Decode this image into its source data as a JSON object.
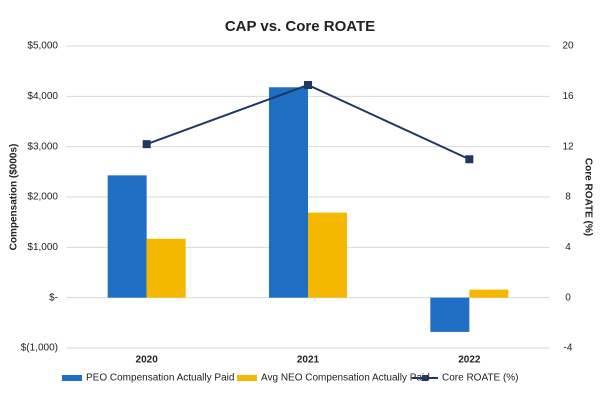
{
  "chart_data": {
    "type": "bar-line",
    "title": "CAP vs. Core ROATE",
    "y_label": "Compensation ($000s)",
    "y2_label": "Core ROATE (%)",
    "categories": [
      "2020",
      "2021",
      "2022"
    ],
    "series": [
      {
        "name": "PEO Compensation Actually Paid",
        "type": "bar",
        "color": "#1f6fc4",
        "values": [
          2430,
          4180,
          -680
        ]
      },
      {
        "name": "Avg NEO Compensation Actually Paid",
        "type": "bar",
        "color": "#f5b800",
        "values": [
          1170,
          1690,
          160
        ]
      },
      {
        "name": "Core ROATE (%)",
        "type": "line",
        "axis": "y2",
        "color": "#1f3864",
        "values": [
          12.2,
          16.9,
          11.0
        ]
      }
    ],
    "ylim": [
      -1000,
      5000
    ],
    "yticks": [
      {
        "value": -1000,
        "label": "$(1,000)"
      },
      {
        "value": 0,
        "label": "$-"
      },
      {
        "value": 1000,
        "label": "$1,000"
      },
      {
        "value": 2000,
        "label": "$2,000"
      },
      {
        "value": 3000,
        "label": "$3,000"
      },
      {
        "value": 4000,
        "label": "$4,000"
      },
      {
        "value": 5000,
        "label": "$5,000"
      }
    ],
    "y2lim": [
      -4,
      20
    ],
    "y2ticks": [
      -4,
      0,
      4,
      8,
      12,
      16,
      20
    ],
    "grid": true,
    "legend": "bottom"
  }
}
